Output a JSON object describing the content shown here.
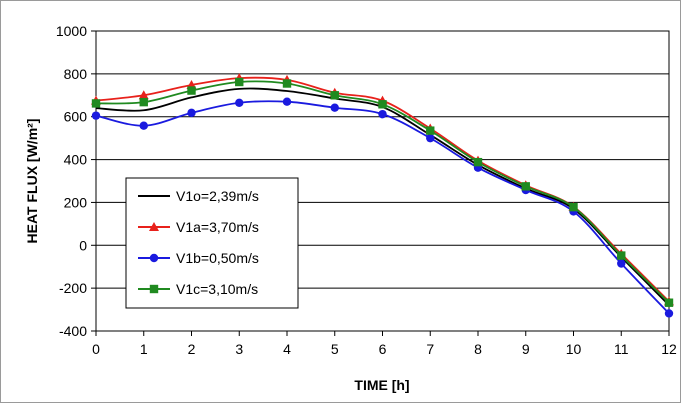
{
  "chart_data": {
    "type": "line",
    "xlabel": "TIME [h]",
    "ylabel": "HEAT FLUX [W/m²]",
    "x": [
      0,
      1,
      2,
      3,
      4,
      5,
      6,
      7,
      8,
      9,
      10,
      11,
      12
    ],
    "xlim": [
      0,
      12
    ],
    "ylim": [
      -400,
      1000
    ],
    "yticks": [
      -400,
      -200,
      0,
      200,
      400,
      600,
      800,
      1000
    ],
    "grid": "horizontal",
    "legend_position": "left",
    "series": [
      {
        "name": "V1o=2,39m/s",
        "color": "#000000",
        "marker": "none",
        "values": [
          640,
          630,
          690,
          730,
          720,
          685,
          645,
          515,
          375,
          265,
          170,
          -55,
          -280
        ]
      },
      {
        "name": "V1a=3,70m/s",
        "color": "#e8211b",
        "marker": "triangle",
        "values": [
          675,
          700,
          748,
          780,
          772,
          712,
          675,
          545,
          395,
          280,
          180,
          -40,
          -262
        ]
      },
      {
        "name": "V1b=0,50m/s",
        "color": "#1a1adf",
        "marker": "circle",
        "values": [
          605,
          558,
          618,
          665,
          670,
          642,
          612,
          500,
          362,
          258,
          158,
          -85,
          -318
        ]
      },
      {
        "name": "V1c=3,10m/s",
        "color": "#208a20",
        "marker": "square",
        "values": [
          662,
          668,
          722,
          762,
          755,
          700,
          658,
          535,
          388,
          275,
          178,
          -48,
          -268
        ]
      }
    ]
  }
}
